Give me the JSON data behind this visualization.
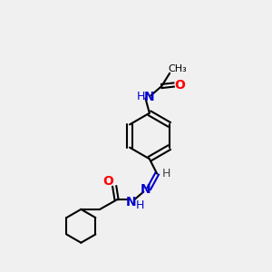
{
  "bg_color": "#f0f0f0",
  "atom_colors": {
    "C": "#000000",
    "H": "#404040",
    "N": "#0000cd",
    "O": "#ff0000"
  },
  "bond_color": "#000000",
  "line_width": 1.5,
  "font_size_atoms": 9,
  "font_size_H": 8
}
